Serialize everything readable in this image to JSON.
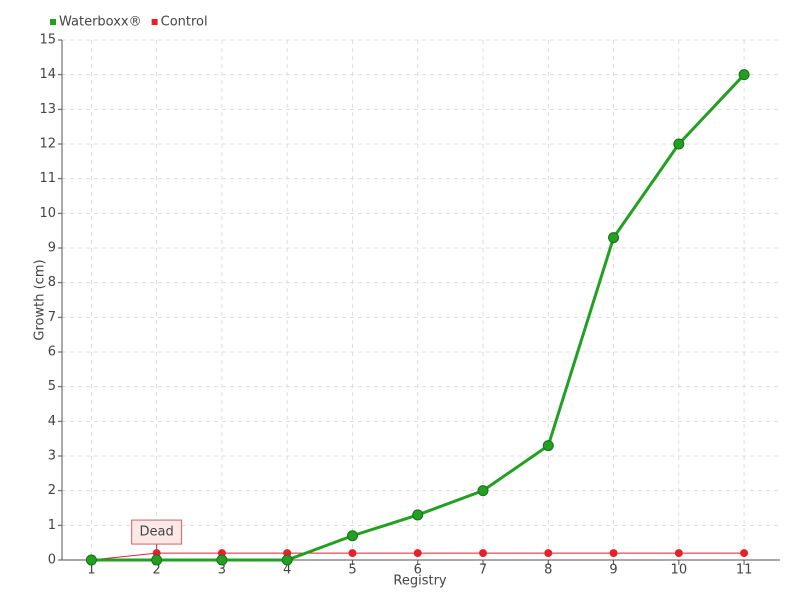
{
  "chart_data": {
    "type": "line",
    "categories": [
      "1",
      "2",
      "3",
      "4",
      "5",
      "6",
      "7",
      "8",
      "9",
      "10",
      "11"
    ],
    "x_label": "Registry",
    "y_label": "Growth (cm)",
    "series": [
      {
        "name": "Waterboxx®",
        "color": "#22a022",
        "values": [
          0,
          0,
          0,
          0,
          0.7,
          1.3,
          2,
          3.3,
          9.3,
          12,
          14
        ]
      },
      {
        "name": "Control",
        "color": "#e8202a",
        "values": [
          0,
          0.2,
          0.2,
          0.2,
          0.2,
          0.2,
          0.2,
          0.2,
          0.2,
          0.2,
          0.2
        ]
      }
    ],
    "annotations": [
      {
        "text": "Dead"
      }
    ],
    "ylim": [
      0,
      15
    ],
    "yticks": [
      0,
      1,
      2,
      3,
      4,
      5,
      6,
      7,
      8,
      9,
      10,
      11,
      12,
      13,
      14,
      15
    ],
    "grid": true,
    "legend": "top-left"
  }
}
